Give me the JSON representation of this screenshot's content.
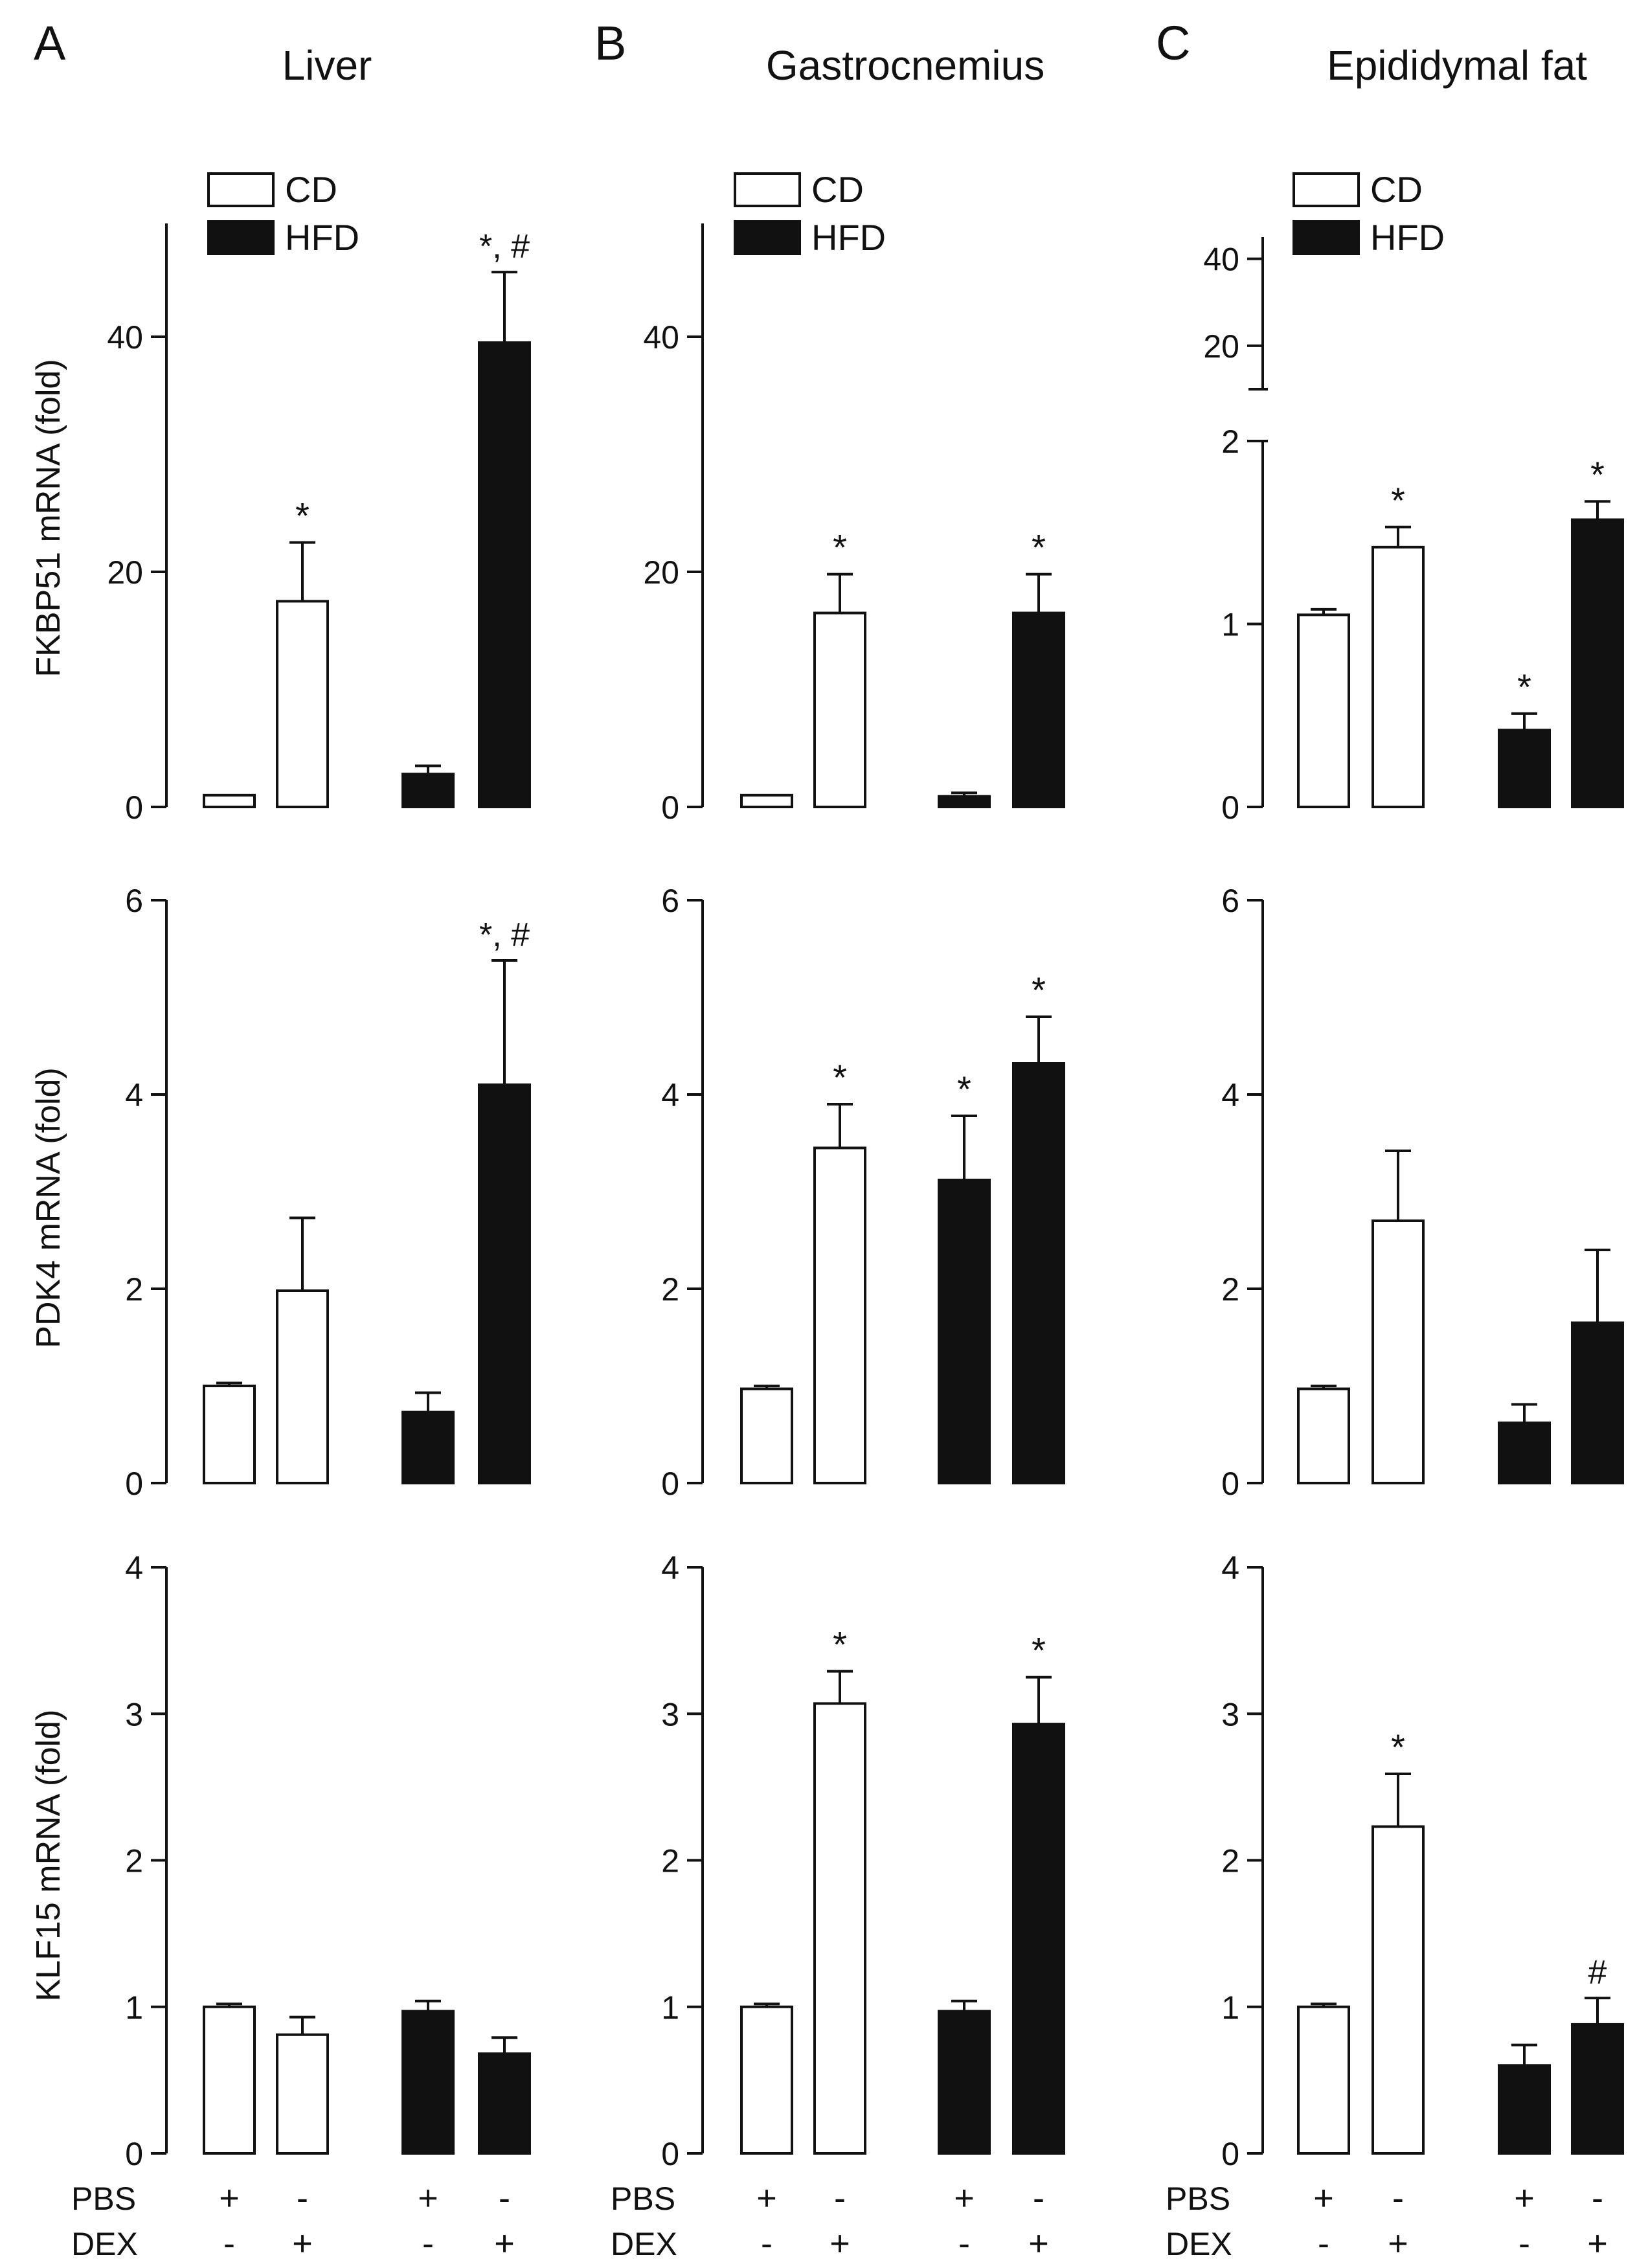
{
  "figure": {
    "panel_letters": [
      "A",
      "B",
      "C"
    ],
    "titles": [
      "Liver",
      "Gastrocnemius",
      "Epididymal fat"
    ],
    "legend": [
      {
        "label": "CD",
        "fill": "#ffffff"
      },
      {
        "label": "HFD",
        "fill": "#111111"
      }
    ],
    "row_labels": [
      "FKBP51 mRNA  (fold)",
      "PDK4 mRNA  (fold)",
      "KLF15 mRNA  (fold)"
    ],
    "treatment_rows": [
      {
        "label": "PBS",
        "signs": [
          "+",
          "-",
          "+",
          "-"
        ]
      },
      {
        "label": "DEX",
        "signs": [
          "-",
          "+",
          "-",
          "+"
        ]
      }
    ],
    "bar_colors": [
      "#ffffff",
      "#ffffff",
      "#111111",
      "#111111"
    ],
    "stroke_color": "#111111"
  },
  "chart_data": [
    {
      "type": "bar",
      "panel": "A",
      "tissue": "Liver",
      "gene": "FKBP51",
      "groups": [
        "CD PBS",
        "CD DEX",
        "HFD PBS",
        "HFD DEX"
      ],
      "values": [
        1.0,
        17.5,
        2.8,
        39.5
      ],
      "errors": [
        0,
        5.0,
        0.7,
        6.0
      ],
      "annotations": [
        "",
        "*",
        "",
        "*, #"
      ],
      "ylim": [
        0,
        50
      ],
      "yticks": [
        0,
        20,
        40
      ],
      "ylabel": "FKBP51 mRNA  (fold)"
    },
    {
      "type": "bar",
      "panel": "B",
      "tissue": "Gastrocnemius",
      "gene": "FKBP51",
      "groups": [
        "CD PBS",
        "CD DEX",
        "HFD PBS",
        "HFD DEX"
      ],
      "values": [
        1.0,
        16.5,
        0.9,
        16.5
      ],
      "errors": [
        0,
        3.3,
        0.3,
        3.3
      ],
      "annotations": [
        "",
        "*",
        "",
        "*"
      ],
      "ylim": [
        0,
        50
      ],
      "yticks": [
        0,
        20,
        40
      ],
      "ylabel": ""
    },
    {
      "type": "bar",
      "panel": "C",
      "tissue": "Epididymal fat",
      "gene": "FKBP51",
      "groups": [
        "CD PBS",
        "CD DEX",
        "HFD PBS",
        "HFD DEX"
      ],
      "values": [
        1.05,
        1.42,
        0.42,
        1.57
      ],
      "errors": [
        0.03,
        0.11,
        0.09,
        0.1
      ],
      "annotations": [
        "",
        "*",
        "*",
        "*"
      ],
      "ylim": [
        0,
        2
      ],
      "yticks": [
        0,
        1,
        2
      ],
      "broken_axis_upper_ticks": [
        20,
        40
      ],
      "ylabel": ""
    },
    {
      "type": "bar",
      "panel": "A",
      "tissue": "Liver",
      "gene": "PDK4",
      "groups": [
        "CD PBS",
        "CD DEX",
        "HFD PBS",
        "HFD DEX"
      ],
      "values": [
        1.0,
        1.98,
        0.73,
        4.1
      ],
      "errors": [
        0.03,
        0.75,
        0.2,
        1.28
      ],
      "annotations": [
        "",
        "",
        "",
        "*, #"
      ],
      "ylim": [
        0,
        6
      ],
      "yticks": [
        0,
        2,
        4,
        6
      ],
      "ylabel": "PDK4 mRNA  (fold)"
    },
    {
      "type": "bar",
      "panel": "B",
      "tissue": "Gastrocnemius",
      "gene": "PDK4",
      "groups": [
        "CD PBS",
        "CD DEX",
        "HFD PBS",
        "HFD DEX"
      ],
      "values": [
        0.97,
        3.45,
        3.12,
        4.32
      ],
      "errors": [
        0.03,
        0.45,
        0.66,
        0.48
      ],
      "annotations": [
        "",
        "*",
        "*",
        "*"
      ],
      "ylim": [
        0,
        6
      ],
      "yticks": [
        0,
        2,
        4,
        6
      ],
      "ylabel": ""
    },
    {
      "type": "bar",
      "panel": "C",
      "tissue": "Epididymal fat",
      "gene": "PDK4",
      "groups": [
        "CD PBS",
        "CD DEX",
        "HFD PBS",
        "HFD DEX"
      ],
      "values": [
        0.97,
        2.7,
        0.62,
        1.65
      ],
      "errors": [
        0.03,
        0.72,
        0.19,
        0.75
      ],
      "annotations": [
        "",
        "",
        "",
        ""
      ],
      "ylim": [
        0,
        6
      ],
      "yticks": [
        0,
        2,
        4,
        6
      ],
      "ylabel": ""
    },
    {
      "type": "bar",
      "panel": "A",
      "tissue": "Liver",
      "gene": "KLF15",
      "groups": [
        "CD PBS",
        "CD DEX",
        "HFD PBS",
        "HFD DEX"
      ],
      "values": [
        1.0,
        0.81,
        0.97,
        0.68
      ],
      "errors": [
        0.02,
        0.12,
        0.07,
        0.11
      ],
      "annotations": [
        "",
        "",
        "",
        ""
      ],
      "ylim": [
        0,
        4
      ],
      "yticks": [
        0,
        1,
        2,
        3,
        4
      ],
      "ylabel": "KLF15 mRNA  (fold)"
    },
    {
      "type": "bar",
      "panel": "B",
      "tissue": "Gastrocnemius",
      "gene": "KLF15",
      "groups": [
        "CD PBS",
        "CD DEX",
        "HFD PBS",
        "HFD DEX"
      ],
      "values": [
        1.0,
        3.07,
        0.97,
        2.93
      ],
      "errors": [
        0.02,
        0.22,
        0.07,
        0.32
      ],
      "annotations": [
        "",
        "*",
        "",
        "*"
      ],
      "ylim": [
        0,
        4
      ],
      "yticks": [
        0,
        1,
        2,
        3,
        4
      ],
      "ylabel": ""
    },
    {
      "type": "bar",
      "panel": "C",
      "tissue": "Epididymal fat",
      "gene": "KLF15",
      "groups": [
        "CD PBS",
        "CD DEX",
        "HFD PBS",
        "HFD DEX"
      ],
      "values": [
        1.0,
        2.23,
        0.6,
        0.88
      ],
      "errors": [
        0.02,
        0.36,
        0.14,
        0.18
      ],
      "annotations": [
        "",
        "*",
        "",
        "#"
      ],
      "ylim": [
        0,
        4
      ],
      "yticks": [
        0,
        1,
        2,
        3,
        4
      ],
      "ylabel": ""
    }
  ]
}
